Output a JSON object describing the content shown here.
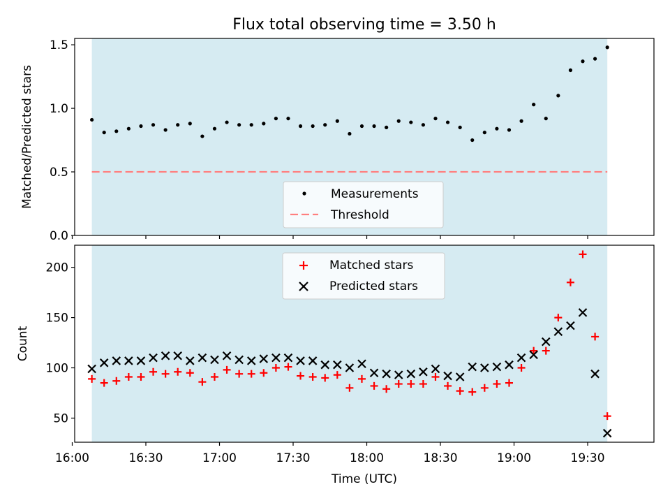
{
  "figure_title": "Flux total observing time = 3.50 h",
  "chart_data": [
    {
      "type": "scatter",
      "ylabel": "Matched/Predicted stars",
      "ylim": [
        0,
        1.55
      ],
      "yticks": [
        0,
        0.5,
        1.0,
        1.5
      ],
      "ytick_labels": [
        "0.0",
        "0.5",
        "1.0",
        "1.5"
      ],
      "xlim": [
        "16:01",
        "19:57"
      ],
      "shaded_span": [
        "16:08",
        "19:38"
      ],
      "shade_color": "#add8e6",
      "threshold": {
        "name": "Threshold",
        "value": 0.5,
        "color": "#ff7f7f"
      },
      "legend": {
        "position": "bottom-center",
        "entries": [
          "Measurements",
          "Threshold"
        ]
      },
      "series": [
        {
          "name": "Measurements",
          "marker": "dot",
          "color": "#000000",
          "x": [
            "16:08",
            "16:13",
            "16:18",
            "16:23",
            "16:28",
            "16:33",
            "16:38",
            "16:43",
            "16:48",
            "16:53",
            "16:58",
            "17:03",
            "17:08",
            "17:13",
            "17:18",
            "17:23",
            "17:28",
            "17:33",
            "17:38",
            "17:43",
            "17:48",
            "17:53",
            "17:58",
            "18:03",
            "18:08",
            "18:13",
            "18:18",
            "18:23",
            "18:28",
            "18:33",
            "18:38",
            "18:43",
            "18:48",
            "18:53",
            "18:58",
            "19:03",
            "19:08",
            "19:13",
            "19:18",
            "19:23",
            "19:28",
            "19:33",
            "19:38"
          ],
          "y": [
            0.91,
            0.81,
            0.82,
            0.84,
            0.86,
            0.87,
            0.83,
            0.87,
            0.88,
            0.78,
            0.84,
            0.89,
            0.87,
            0.87,
            0.88,
            0.92,
            0.92,
            0.86,
            0.86,
            0.87,
            0.9,
            0.8,
            0.86,
            0.86,
            0.85,
            0.9,
            0.89,
            0.87,
            0.92,
            0.89,
            0.85,
            0.75,
            0.81,
            0.84,
            0.83,
            0.9,
            1.03,
            0.92,
            1.1,
            1.3,
            1.37,
            1.39,
            1.48
          ]
        }
      ]
    },
    {
      "type": "scatter",
      "xlabel": "Time (UTC)",
      "ylabel": "Count",
      "ylim": [
        26,
        222
      ],
      "yticks": [
        50,
        100,
        150,
        200
      ],
      "ytick_labels": [
        "50",
        "100",
        "150",
        "200"
      ],
      "xlim": [
        "16:01",
        "19:57"
      ],
      "xticks": [
        "16:00",
        "16:30",
        "17:00",
        "17:30",
        "18:00",
        "18:30",
        "19:00",
        "19:30"
      ],
      "shaded_span": [
        "16:08",
        "19:38"
      ],
      "shade_color": "#add8e6",
      "legend": {
        "position": "top-center",
        "entries": [
          "Matched stars",
          "Predicted stars"
        ]
      },
      "series": [
        {
          "name": "Matched stars",
          "marker": "plus",
          "color": "#ff0000",
          "x": [
            "16:08",
            "16:13",
            "16:18",
            "16:23",
            "16:28",
            "16:33",
            "16:38",
            "16:43",
            "16:48",
            "16:53",
            "16:58",
            "17:03",
            "17:08",
            "17:13",
            "17:18",
            "17:23",
            "17:28",
            "17:33",
            "17:38",
            "17:43",
            "17:48",
            "17:53",
            "17:58",
            "18:03",
            "18:08",
            "18:13",
            "18:18",
            "18:23",
            "18:28",
            "18:33",
            "18:38",
            "18:43",
            "18:48",
            "18:53",
            "18:58",
            "19:03",
            "19:08",
            "19:13",
            "19:18",
            "19:23",
            "19:28",
            "19:33",
            "19:38"
          ],
          "y": [
            89,
            85,
            87,
            91,
            91,
            96,
            94,
            96,
            95,
            86,
            91,
            98,
            94,
            94,
            95,
            100,
            101,
            92,
            91,
            90,
            93,
            80,
            89,
            82,
            79,
            84,
            84,
            84,
            91,
            82,
            77,
            76,
            80,
            84,
            85,
            100,
            117,
            117,
            150,
            185,
            213,
            131,
            52
          ]
        },
        {
          "name": "Predicted stars",
          "marker": "x",
          "color": "#000000",
          "x": [
            "16:08",
            "16:13",
            "16:18",
            "16:23",
            "16:28",
            "16:33",
            "16:38",
            "16:43",
            "16:48",
            "16:53",
            "16:58",
            "17:03",
            "17:08",
            "17:13",
            "17:18",
            "17:23",
            "17:28",
            "17:33",
            "17:38",
            "17:43",
            "17:48",
            "17:53",
            "17:58",
            "18:03",
            "18:08",
            "18:13",
            "18:18",
            "18:23",
            "18:28",
            "18:33",
            "18:38",
            "18:43",
            "18:48",
            "18:53",
            "18:58",
            "19:03",
            "19:08",
            "19:13",
            "19:18",
            "19:23",
            "19:28",
            "19:33",
            "19:38"
          ],
          "y": [
            99,
            105,
            107,
            107,
            107,
            110,
            112,
            112,
            107,
            110,
            108,
            112,
            108,
            107,
            109,
            110,
            110,
            107,
            107,
            103,
            103,
            100,
            104,
            95,
            94,
            93,
            94,
            96,
            99,
            92,
            91,
            101,
            100,
            101,
            103,
            110,
            113,
            126,
            136,
            142,
            155,
            94,
            35
          ]
        }
      ]
    }
  ]
}
